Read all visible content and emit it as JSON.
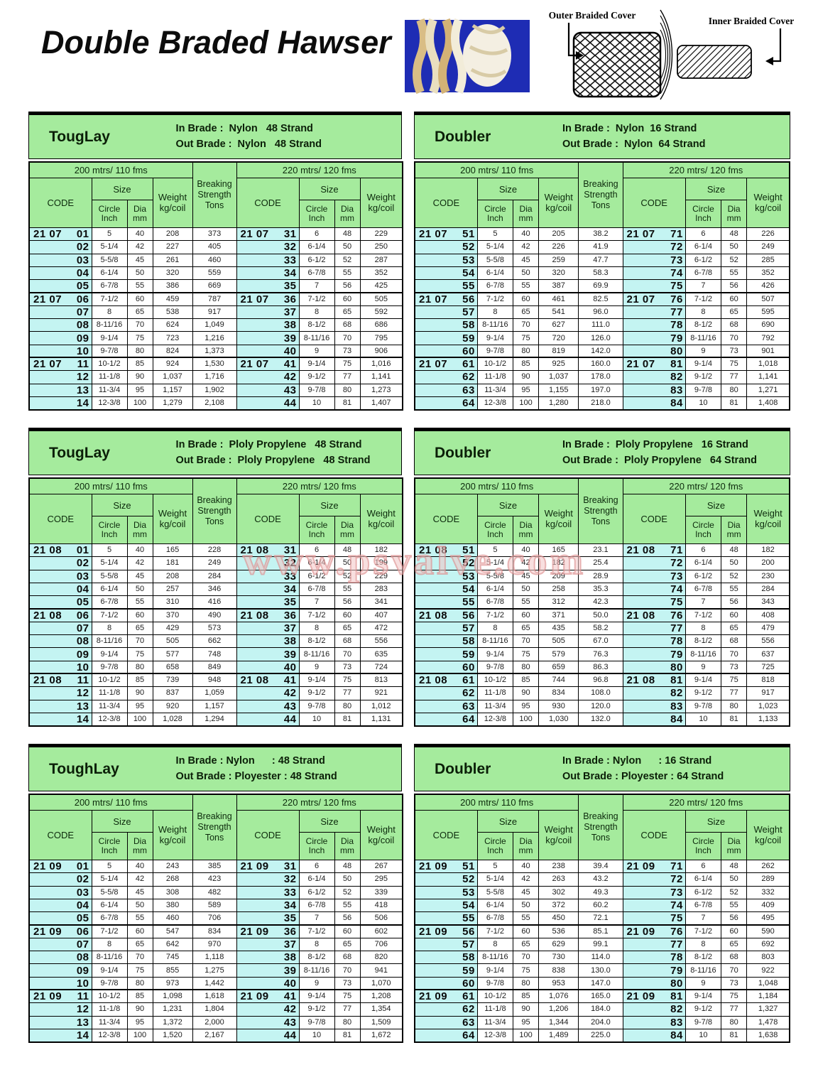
{
  "page": {
    "title": "Double Braded Hawser",
    "watermark": "www.psvalve.com"
  },
  "diagram": {
    "outer_label": "Outer Braided Cover",
    "inner_label": "Inner Braided Cover"
  },
  "columns": {
    "span_left": "200 mtrs/ 110 fms",
    "span_right": "220 mtrs/ 120 fms",
    "code": "CODE",
    "size": "Size",
    "circle": "Circle Inch",
    "dia": "Dia mm",
    "weight": "Weight kg/coil",
    "breaking": "Breaking Strength Tons"
  },
  "tables": [
    {
      "name": "TougLay",
      "in_line": "In Brade :  Nylon   48 Strand",
      "out_line": "Out Brade :  Nylon   48 Strand",
      "rows": [
        [
          "21 07",
          "01",
          "5",
          "40",
          "208",
          "373",
          "21 07",
          "31",
          "6",
          "48",
          "229"
        ],
        [
          "",
          "02",
          "5-1/4",
          "42",
          "227",
          "405",
          "",
          "32",
          "6-1/4",
          "50",
          "250"
        ],
        [
          "",
          "03",
          "5-5/8",
          "45",
          "261",
          "460",
          "",
          "33",
          "6-1/2",
          "52",
          "287"
        ],
        [
          "",
          "04",
          "6-1/4",
          "50",
          "320",
          "559",
          "",
          "34",
          "6-7/8",
          "55",
          "352"
        ],
        [
          "",
          "05",
          "6-7/8",
          "55",
          "386",
          "669",
          "",
          "35",
          "7",
          "56",
          "425"
        ],
        [
          "21 07",
          "06",
          "7-1/2",
          "60",
          "459",
          "787",
          "21 07",
          "36",
          "7-1/2",
          "60",
          "505"
        ],
        [
          "",
          "07",
          "8",
          "65",
          "538",
          "917",
          "",
          "37",
          "8",
          "65",
          "592"
        ],
        [
          "",
          "08",
          "8-11/16",
          "70",
          "624",
          "1,049",
          "",
          "38",
          "8-1/2",
          "68",
          "686"
        ],
        [
          "",
          "09",
          "9-1/4",
          "75",
          "723",
          "1,216",
          "",
          "39",
          "8-11/16",
          "70",
          "795"
        ],
        [
          "",
          "10",
          "9-7/8",
          "80",
          "824",
          "1,373",
          "",
          "40",
          "9",
          "73",
          "906"
        ],
        [
          "21 07",
          "11",
          "10-1/2",
          "85",
          "924",
          "1,530",
          "21 07",
          "41",
          "9-1/4",
          "75",
          "1,016"
        ],
        [
          "",
          "12",
          "11-1/8",
          "90",
          "1,037",
          "1,716",
          "",
          "42",
          "9-1/2",
          "77",
          "1,141"
        ],
        [
          "",
          "13",
          "11-3/4",
          "95",
          "1,157",
          "1,902",
          "",
          "43",
          "9-7/8",
          "80",
          "1,273"
        ],
        [
          "",
          "14",
          "12-3/8",
          "100",
          "1,279",
          "2,108",
          "",
          "44",
          "10",
          "81",
          "1,407"
        ]
      ]
    },
    {
      "name": "Doubler",
      "in_line": "In Brade :  Nylon  16 Strand",
      "out_line": "Out Brade :  Nylon  64 Strand",
      "rows": [
        [
          "21 07",
          "51",
          "5",
          "40",
          "205",
          "38.2",
          "21 07",
          "71",
          "6",
          "48",
          "226"
        ],
        [
          "",
          "52",
          "5-1/4",
          "42",
          "226",
          "41.9",
          "",
          "72",
          "6-1/4",
          "50",
          "249"
        ],
        [
          "",
          "53",
          "5-5/8",
          "45",
          "259",
          "47.7",
          "",
          "73",
          "6-1/2",
          "52",
          "285"
        ],
        [
          "",
          "54",
          "6-1/4",
          "50",
          "320",
          "58.3",
          "",
          "74",
          "6-7/8",
          "55",
          "352"
        ],
        [
          "",
          "55",
          "6-7/8",
          "55",
          "387",
          "69.9",
          "",
          "75",
          "7",
          "56",
          "426"
        ],
        [
          "21 07",
          "56",
          "7-1/2",
          "60",
          "461",
          "82.5",
          "21 07",
          "76",
          "7-1/2",
          "60",
          "507"
        ],
        [
          "",
          "57",
          "8",
          "65",
          "541",
          "96.0",
          "",
          "77",
          "8",
          "65",
          "595"
        ],
        [
          "",
          "58",
          "8-11/16",
          "70",
          "627",
          "111.0",
          "",
          "78",
          "8-1/2",
          "68",
          "690"
        ],
        [
          "",
          "59",
          "9-1/4",
          "75",
          "720",
          "126.0",
          "",
          "79",
          "8-11/16",
          "70",
          "792"
        ],
        [
          "",
          "60",
          "9-7/8",
          "80",
          "819",
          "142.0",
          "",
          "80",
          "9",
          "73",
          "901"
        ],
        [
          "21 07",
          "61",
          "10-1/2",
          "85",
          "925",
          "160.0",
          "21 07",
          "81",
          "9-1/4",
          "75",
          "1,018"
        ],
        [
          "",
          "62",
          "11-1/8",
          "90",
          "1,037",
          "178.0",
          "",
          "82",
          "9-1/2",
          "77",
          "1,141"
        ],
        [
          "",
          "63",
          "11-3/4",
          "95",
          "1,155",
          "197.0",
          "",
          "83",
          "9-7/8",
          "80",
          "1,271"
        ],
        [
          "",
          "64",
          "12-3/8",
          "100",
          "1,280",
          "218.0",
          "",
          "84",
          "10",
          "81",
          "1,408"
        ]
      ]
    },
    {
      "name": "TougLay",
      "in_line": "In Brade :  Ploly Propylene   48 Strand",
      "out_line": "Out Brade :  Ploly Propylene   48 Strand",
      "rows": [
        [
          "21 08",
          "01",
          "5",
          "40",
          "165",
          "228",
          "21 08",
          "31",
          "6",
          "48",
          "182"
        ],
        [
          "",
          "02",
          "5-1/4",
          "42",
          "181",
          "249",
          "",
          "32",
          "6-1/4",
          "50",
          "199"
        ],
        [
          "",
          "03",
          "5-5/8",
          "45",
          "208",
          "284",
          "",
          "33",
          "6-1/2",
          "52",
          "229"
        ],
        [
          "",
          "04",
          "6-1/4",
          "50",
          "257",
          "346",
          "",
          "34",
          "6-7/8",
          "55",
          "283"
        ],
        [
          "",
          "05",
          "6-7/8",
          "55",
          "310",
          "416",
          "",
          "35",
          "7",
          "56",
          "341"
        ],
        [
          "21 08",
          "06",
          "7-1/2",
          "60",
          "370",
          "490",
          "21 08",
          "36",
          "7-1/2",
          "60",
          "407"
        ],
        [
          "",
          "07",
          "8",
          "65",
          "429",
          "573",
          "",
          "37",
          "8",
          "65",
          "472"
        ],
        [
          "",
          "08",
          "8-11/16",
          "70",
          "505",
          "662",
          "",
          "38",
          "8-1/2",
          "68",
          "556"
        ],
        [
          "",
          "09",
          "9-1/4",
          "75",
          "577",
          "748",
          "",
          "39",
          "8-11/16",
          "70",
          "635"
        ],
        [
          "",
          "10",
          "9-7/8",
          "80",
          "658",
          "849",
          "",
          "40",
          "9",
          "73",
          "724"
        ],
        [
          "21 08",
          "11",
          "10-1/2",
          "85",
          "739",
          "948",
          "21 08",
          "41",
          "9-1/4",
          "75",
          "813"
        ],
        [
          "",
          "12",
          "11-1/8",
          "90",
          "837",
          "1,059",
          "",
          "42",
          "9-1/2",
          "77",
          "921"
        ],
        [
          "",
          "13",
          "11-3/4",
          "95",
          "920",
          "1,157",
          "",
          "43",
          "9-7/8",
          "80",
          "1,012"
        ],
        [
          "",
          "14",
          "12-3/8",
          "100",
          "1,028",
          "1,294",
          "",
          "44",
          "10",
          "81",
          "1,131"
        ]
      ]
    },
    {
      "name": "Doubler",
      "in_line": "In Brade :  Ploly Propylene   16 Strand",
      "out_line": "Out Brade :  Ploly Propylene   64 Strand",
      "rows": [
        [
          "21 08",
          "51",
          "5",
          "40",
          "165",
          "23.1",
          "21 08",
          "71",
          "6",
          "48",
          "182"
        ],
        [
          "",
          "52",
          "5-1/4",
          "42",
          "182",
          "25.4",
          "",
          "72",
          "6-1/4",
          "50",
          "200"
        ],
        [
          "",
          "53",
          "5-5/8",
          "45",
          "209",
          "28.9",
          "",
          "73",
          "6-1/2",
          "52",
          "230"
        ],
        [
          "",
          "54",
          "6-1/4",
          "50",
          "258",
          "35.3",
          "",
          "74",
          "6-7/8",
          "55",
          "284"
        ],
        [
          "",
          "55",
          "6-7/8",
          "55",
          "312",
          "42.3",
          "",
          "75",
          "7",
          "56",
          "343"
        ],
        [
          "21 08",
          "56",
          "7-1/2",
          "60",
          "371",
          "50.0",
          "21 08",
          "76",
          "7-1/2",
          "60",
          "408"
        ],
        [
          "",
          "57",
          "8",
          "65",
          "435",
          "58.2",
          "",
          "77",
          "8",
          "65",
          "479"
        ],
        [
          "",
          "58",
          "8-11/16",
          "70",
          "505",
          "67.0",
          "",
          "78",
          "8-1/2",
          "68",
          "556"
        ],
        [
          "",
          "59",
          "9-1/4",
          "75",
          "579",
          "76.3",
          "",
          "79",
          "8-11/16",
          "70",
          "637"
        ],
        [
          "",
          "60",
          "9-7/8",
          "80",
          "659",
          "86.3",
          "",
          "80",
          "9",
          "73",
          "725"
        ],
        [
          "21 08",
          "61",
          "10-1/2",
          "85",
          "744",
          "96.8",
          "21 08",
          "81",
          "9-1/4",
          "75",
          "818"
        ],
        [
          "",
          "62",
          "11-1/8",
          "90",
          "834",
          "108.0",
          "",
          "82",
          "9-1/2",
          "77",
          "917"
        ],
        [
          "",
          "63",
          "11-3/4",
          "95",
          "930",
          "120.0",
          "",
          "83",
          "9-7/8",
          "80",
          "1,023"
        ],
        [
          "",
          "64",
          "12-3/8",
          "100",
          "1,030",
          "132.0",
          "",
          "84",
          "10",
          "81",
          "1,133"
        ]
      ]
    },
    {
      "name": "ToughLay",
      "in_line": "In Brade : Nylon      : 48 Strand",
      "out_line": "Out Brade : Ployester : 48 Strand",
      "rows": [
        [
          "21 09",
          "01",
          "5",
          "40",
          "243",
          "385",
          "21 09",
          "31",
          "6",
          "48",
          "267"
        ],
        [
          "",
          "02",
          "5-1/4",
          "42",
          "268",
          "423",
          "",
          "32",
          "6-1/4",
          "50",
          "295"
        ],
        [
          "",
          "03",
          "5-5/8",
          "45",
          "308",
          "482",
          "",
          "33",
          "6-1/2",
          "52",
          "339"
        ],
        [
          "",
          "04",
          "6-1/4",
          "50",
          "380",
          "589",
          "",
          "34",
          "6-7/8",
          "55",
          "418"
        ],
        [
          "",
          "05",
          "6-7/8",
          "55",
          "460",
          "706",
          "",
          "35",
          "7",
          "56",
          "506"
        ],
        [
          "21 09",
          "06",
          "7-1/2",
          "60",
          "547",
          "834",
          "21 09",
          "36",
          "7-1/2",
          "60",
          "602"
        ],
        [
          "",
          "07",
          "8",
          "65",
          "642",
          "970",
          "",
          "37",
          "8",
          "65",
          "706"
        ],
        [
          "",
          "08",
          "8-11/16",
          "70",
          "745",
          "1,118",
          "",
          "38",
          "8-1/2",
          "68",
          "820"
        ],
        [
          "",
          "09",
          "9-1/4",
          "75",
          "855",
          "1,275",
          "",
          "39",
          "8-11/16",
          "70",
          "941"
        ],
        [
          "",
          "10",
          "9-7/8",
          "80",
          "973",
          "1,442",
          "",
          "40",
          "9",
          "73",
          "1,070"
        ],
        [
          "21 09",
          "11",
          "10-1/2",
          "85",
          "1,098",
          "1,618",
          "21 09",
          "41",
          "9-1/4",
          "75",
          "1,208"
        ],
        [
          "",
          "12",
          "11-1/8",
          "90",
          "1,231",
          "1,804",
          "",
          "42",
          "9-1/2",
          "77",
          "1,354"
        ],
        [
          "",
          "13",
          "11-3/4",
          "95",
          "1,372",
          "2,000",
          "",
          "43",
          "9-7/8",
          "80",
          "1,509"
        ],
        [
          "",
          "14",
          "12-3/8",
          "100",
          "1,520",
          "2,167",
          "",
          "44",
          "10",
          "81",
          "1,672"
        ]
      ]
    },
    {
      "name": "Doubler",
      "in_line": "In Brade : Nylon      : 16 Strand",
      "out_line": "Out Brade : Ployester : 64 Strand",
      "rows": [
        [
          "21 09",
          "51",
          "5",
          "40",
          "238",
          "39.4",
          "21 09",
          "71",
          "6",
          "48",
          "262"
        ],
        [
          "",
          "52",
          "5-1/4",
          "42",
          "263",
          "43.2",
          "",
          "72",
          "6-1/4",
          "50",
          "289"
        ],
        [
          "",
          "53",
          "5-5/8",
          "45",
          "302",
          "49.3",
          "",
          "73",
          "6-1/2",
          "52",
          "332"
        ],
        [
          "",
          "54",
          "6-1/4",
          "50",
          "372",
          "60.2",
          "",
          "74",
          "6-7/8",
          "55",
          "409"
        ],
        [
          "",
          "55",
          "6-7/8",
          "55",
          "450",
          "72.1",
          "",
          "75",
          "7",
          "56",
          "495"
        ],
        [
          "21 09",
          "56",
          "7-1/2",
          "60",
          "536",
          "85.1",
          "21 09",
          "76",
          "7-1/2",
          "60",
          "590"
        ],
        [
          "",
          "57",
          "8",
          "65",
          "629",
          "99.1",
          "",
          "77",
          "8",
          "65",
          "692"
        ],
        [
          "",
          "58",
          "8-11/16",
          "70",
          "730",
          "114.0",
          "",
          "78",
          "8-1/2",
          "68",
          "803"
        ],
        [
          "",
          "59",
          "9-1/4",
          "75",
          "838",
          "130.0",
          "",
          "79",
          "8-11/16",
          "70",
          "922"
        ],
        [
          "",
          "60",
          "9-7/8",
          "80",
          "953",
          "147.0",
          "",
          "80",
          "9",
          "73",
          "1,048"
        ],
        [
          "21 09",
          "61",
          "10-1/2",
          "85",
          "1,076",
          "165.0",
          "21 09",
          "81",
          "9-1/4",
          "75",
          "1,184"
        ],
        [
          "",
          "62",
          "11-1/8",
          "90",
          "1,206",
          "184.0",
          "",
          "82",
          "9-1/2",
          "77",
          "1,327"
        ],
        [
          "",
          "63",
          "11-3/4",
          "95",
          "1,344",
          "204.0",
          "",
          "83",
          "9-7/8",
          "80",
          "1,478"
        ],
        [
          "",
          "64",
          "12-3/8",
          "100",
          "1,489",
          "225.0",
          "",
          "84",
          "10",
          "81",
          "1,638"
        ]
      ]
    }
  ]
}
